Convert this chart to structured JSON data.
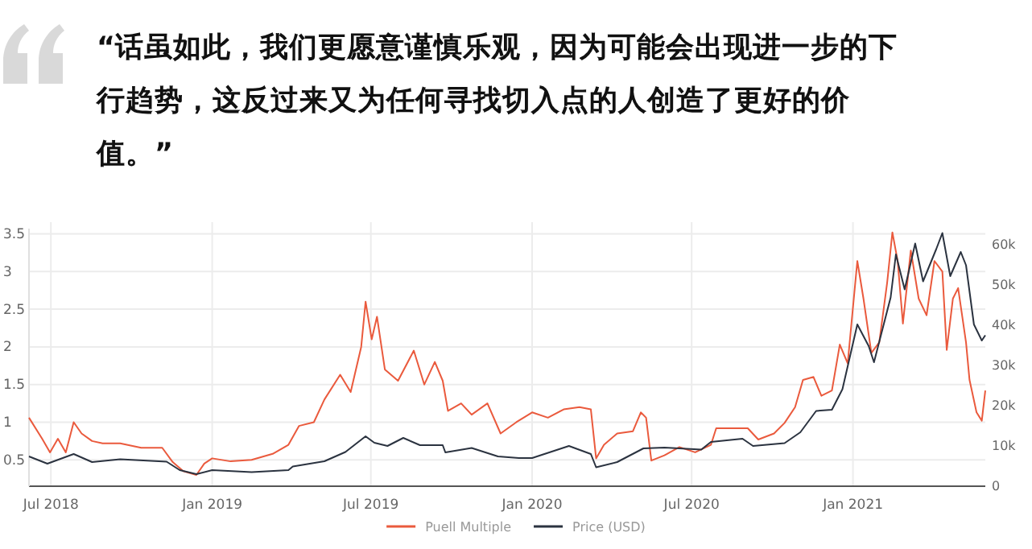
{
  "chart_data": {
    "type": "line",
    "title": "“话虽如此，我们更愿意谨慎乐观，因为可能会出现进一步的下行趋势，这反过来又为任何寻找切入点的人创造了更好的价值。”",
    "xlim": [
      "2018-06-06",
      "2021-06-01"
    ],
    "xticks": [
      {
        "value": "2018-07-01",
        "label": "Jul 2018"
      },
      {
        "value": "2019-01-01",
        "label": "Jan 2019"
      },
      {
        "value": "2019-07-01",
        "label": "Jul 2019"
      },
      {
        "value": "2020-01-01",
        "label": "Jan 2020"
      },
      {
        "value": "2020-07-01",
        "label": "Jul 2020"
      },
      {
        "value": "2021-01-01",
        "label": "Jan 2021"
      }
    ],
    "ylim": [
      0.15,
      3.57
    ],
    "yticks": [
      0.5,
      1,
      1.5,
      2,
      2.5,
      3,
      3.5
    ],
    "y2lim": [
      0,
      64000
    ],
    "y2ticks": [
      {
        "value": 0,
        "label": "0"
      },
      {
        "value": 10000,
        "label": "10k"
      },
      {
        "value": 20000,
        "label": "20k"
      },
      {
        "value": 30000,
        "label": "30k"
      },
      {
        "value": 40000,
        "label": "40k"
      },
      {
        "value": 50000,
        "label": "50k"
      },
      {
        "value": 60000,
        "label": "60k"
      }
    ],
    "grid": true,
    "legend": "bottom",
    "series": [
      {
        "name": "Puell Multiple",
        "color": "#ea5a3d",
        "axis": "y",
        "x": [
          "2018-06-06",
          "2018-06-21",
          "2018-06-30",
          "2018-07-09",
          "2018-07-18",
          "2018-07-27",
          "2018-08-05",
          "2018-08-17",
          "2018-08-29",
          "2018-09-18",
          "2018-10-12",
          "2018-11-05",
          "2018-11-17",
          "2018-11-29",
          "2018-12-14",
          "2018-12-23",
          "2019-01-01",
          "2019-01-22",
          "2019-02-15",
          "2019-03-11",
          "2019-03-29",
          "2019-04-10",
          "2019-04-27",
          "2019-05-09",
          "2019-05-27",
          "2019-06-08",
          "2019-06-20",
          "2019-06-25",
          "2019-07-02",
          "2019-07-08",
          "2019-07-17",
          "2019-08-01",
          "2019-08-19",
          "2019-08-31",
          "2019-09-12",
          "2019-09-21",
          "2019-09-27",
          "2019-10-12",
          "2019-10-24",
          "2019-11-11",
          "2019-11-26",
          "2019-12-14",
          "2020-01-01",
          "2020-01-19",
          "2020-02-06",
          "2020-02-24",
          "2020-03-08",
          "2020-03-14",
          "2020-03-23",
          "2020-04-07",
          "2020-04-25",
          "2020-05-04",
          "2020-05-10",
          "2020-05-16",
          "2020-05-31",
          "2020-06-17",
          "2020-07-05",
          "2020-07-23",
          "2020-07-29",
          "2020-08-16",
          "2020-09-03",
          "2020-09-15",
          "2020-10-03",
          "2020-10-15",
          "2020-10-27",
          "2020-11-05",
          "2020-11-17",
          "2020-11-26",
          "2020-12-08",
          "2020-12-17",
          "2020-12-26",
          "2021-01-06",
          "2021-01-13",
          "2021-01-22",
          "2021-01-31",
          "2021-02-09",
          "2021-02-15",
          "2021-02-21",
          "2021-02-27",
          "2021-03-08",
          "2021-03-17",
          "2021-03-26",
          "2021-04-04",
          "2021-04-13",
          "2021-04-18",
          "2021-04-25",
          "2021-05-01",
          "2021-05-10",
          "2021-05-14",
          "2021-05-22",
          "2021-05-28",
          "2021-06-01"
        ],
        "values": [
          1.06,
          0.78,
          0.6,
          0.78,
          0.6,
          1.0,
          0.85,
          0.75,
          0.72,
          0.72,
          0.66,
          0.66,
          0.47,
          0.35,
          0.3,
          0.45,
          0.52,
          0.48,
          0.5,
          0.58,
          0.7,
          0.95,
          1.0,
          1.3,
          1.63,
          1.4,
          2.0,
          2.6,
          2.1,
          2.4,
          1.7,
          1.55,
          1.95,
          1.5,
          1.8,
          1.55,
          1.15,
          1.25,
          1.1,
          1.25,
          0.85,
          1.0,
          1.13,
          1.06,
          1.17,
          1.2,
          1.17,
          0.52,
          0.7,
          0.85,
          0.88,
          1.13,
          1.06,
          0.49,
          0.56,
          0.67,
          0.6,
          0.7,
          0.92,
          0.92,
          0.92,
          0.77,
          0.85,
          0.99,
          1.2,
          1.56,
          1.6,
          1.35,
          1.42,
          2.03,
          1.78,
          3.14,
          2.64,
          1.92,
          2.06,
          2.85,
          3.52,
          3.14,
          2.31,
          3.28,
          2.64,
          2.42,
          3.14,
          3.0,
          1.96,
          2.64,
          2.78,
          2.06,
          1.56,
          1.13,
          1.02,
          1.42
        ]
      },
      {
        "name": "Price (USD)",
        "color": "#2b3340",
        "axis": "y2",
        "x": [
          "2018-06-06",
          "2018-06-27",
          "2018-07-27",
          "2018-08-17",
          "2018-09-18",
          "2018-11-10",
          "2018-11-25",
          "2018-12-14",
          "2019-01-01",
          "2019-02-15",
          "2019-03-29",
          "2019-04-03",
          "2019-05-09",
          "2019-06-02",
          "2019-06-25",
          "2019-07-05",
          "2019-07-20",
          "2019-08-07",
          "2019-08-26",
          "2019-09-21",
          "2019-09-24",
          "2019-10-24",
          "2019-11-23",
          "2019-12-17",
          "2020-01-01",
          "2020-02-12",
          "2020-03-08",
          "2020-03-14",
          "2020-04-07",
          "2020-05-07",
          "2020-05-31",
          "2020-07-12",
          "2020-07-23",
          "2020-08-28",
          "2020-09-09",
          "2020-10-15",
          "2020-11-02",
          "2020-11-20",
          "2020-12-08",
          "2020-12-20",
          "2021-01-06",
          "2021-01-19",
          "2021-01-25",
          "2021-02-13",
          "2021-02-19",
          "2021-03-01",
          "2021-03-13",
          "2021-03-22",
          "2021-04-06",
          "2021-04-13",
          "2021-04-22",
          "2021-05-04",
          "2021-05-10",
          "2021-05-19",
          "2021-05-28",
          "2021-06-01"
        ],
        "values": [
          7400,
          5600,
          8000,
          6000,
          6700,
          6100,
          4000,
          3000,
          4000,
          3500,
          4000,
          4900,
          6200,
          8500,
          12400,
          10800,
          10000,
          12000,
          10200,
          10200,
          8400,
          9500,
          7400,
          7000,
          7000,
          10000,
          8000,
          4700,
          6000,
          9400,
          9600,
          9100,
          11000,
          11800,
          10000,
          10700,
          13400,
          18700,
          19000,
          24100,
          40200,
          34800,
          30800,
          46900,
          57600,
          48900,
          60300,
          50900,
          58900,
          62900,
          52200,
          58200,
          54900,
          40200,
          36200,
          37500
        ]
      }
    ]
  }
}
